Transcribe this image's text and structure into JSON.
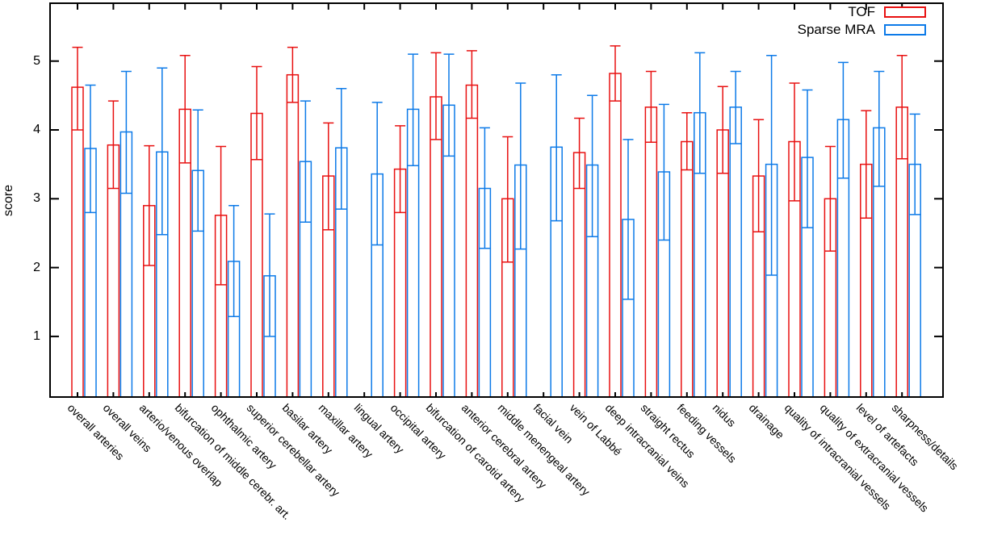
{
  "chart_data": {
    "type": "bar",
    "title": "",
    "xlabel": "",
    "ylabel": "score",
    "ylim": [
      0.12,
      5.84
    ],
    "yticks": [
      1,
      2,
      3,
      4,
      5
    ],
    "grid": false,
    "legend_position": "top-right",
    "x_tick_rotation": 45,
    "error_bars": true,
    "categories": [
      "overall arteries",
      "overall veins",
      "arterio/venous overlap",
      "bifurcation of middle cerebr. art.",
      "ophthalmic artery",
      "superior cerebellar artery",
      "basilar artery",
      "maxillar artery",
      "lingual artery",
      "occipital artery",
      "bifurcation of carotid artery",
      "anterior cerebral artery",
      "middle menengeal artery",
      "facial vein",
      "vein of Labbé",
      "deep intracranial veins",
      "straight rectus",
      "feeding vessels",
      "nidus",
      "drainage",
      "quality of intracranial vessels",
      "quality of extracranial vessels",
      "level of artefacts",
      "sharpness/details"
    ],
    "series": [
      {
        "name": "TOF",
        "color": "#e81010",
        "values": [
          4.62,
          3.78,
          2.9,
          4.3,
          2.76,
          4.24,
          4.8,
          3.33,
          null,
          3.43,
          4.48,
          4.65,
          3.0,
          null,
          3.67,
          4.82,
          4.33,
          3.83,
          4.0,
          3.33,
          3.83,
          3.0,
          3.5,
          4.33
        ],
        "err_low": [
          4.0,
          3.15,
          2.03,
          3.52,
          1.75,
          3.57,
          4.4,
          2.55,
          null,
          2.8,
          3.86,
          4.17,
          2.08,
          null,
          3.15,
          4.42,
          3.82,
          3.42,
          3.37,
          2.52,
          2.97,
          2.24,
          2.72,
          3.58
        ],
        "err_high": [
          5.2,
          4.42,
          3.77,
          5.08,
          3.76,
          4.92,
          5.2,
          4.1,
          null,
          4.06,
          5.12,
          5.15,
          3.9,
          null,
          4.17,
          5.22,
          4.85,
          4.25,
          4.63,
          4.15,
          4.68,
          3.76,
          4.28,
          5.08
        ]
      },
      {
        "name": "Sparse MRA",
        "color": "#0c7ae8",
        "values": [
          3.73,
          3.97,
          3.68,
          3.41,
          2.09,
          1.88,
          3.54,
          3.74,
          3.36,
          4.3,
          4.36,
          3.15,
          3.49,
          3.75,
          3.49,
          2.7,
          3.39,
          4.25,
          4.33,
          3.5,
          3.6,
          4.15,
          4.03,
          3.5
        ],
        "err_low": [
          2.8,
          3.08,
          2.48,
          2.53,
          1.29,
          1.0,
          2.66,
          2.85,
          2.33,
          3.48,
          3.62,
          2.28,
          2.27,
          2.68,
          2.45,
          1.54,
          2.4,
          3.37,
          3.8,
          1.89,
          2.58,
          3.3,
          3.18,
          2.77
        ],
        "err_high": [
          4.65,
          4.85,
          4.9,
          4.29,
          2.9,
          2.78,
          4.42,
          4.6,
          4.4,
          5.1,
          5.1,
          4.03,
          4.68,
          4.8,
          4.5,
          3.86,
          4.37,
          5.12,
          4.85,
          5.08,
          4.58,
          4.98,
          4.85,
          4.23
        ]
      }
    ]
  }
}
